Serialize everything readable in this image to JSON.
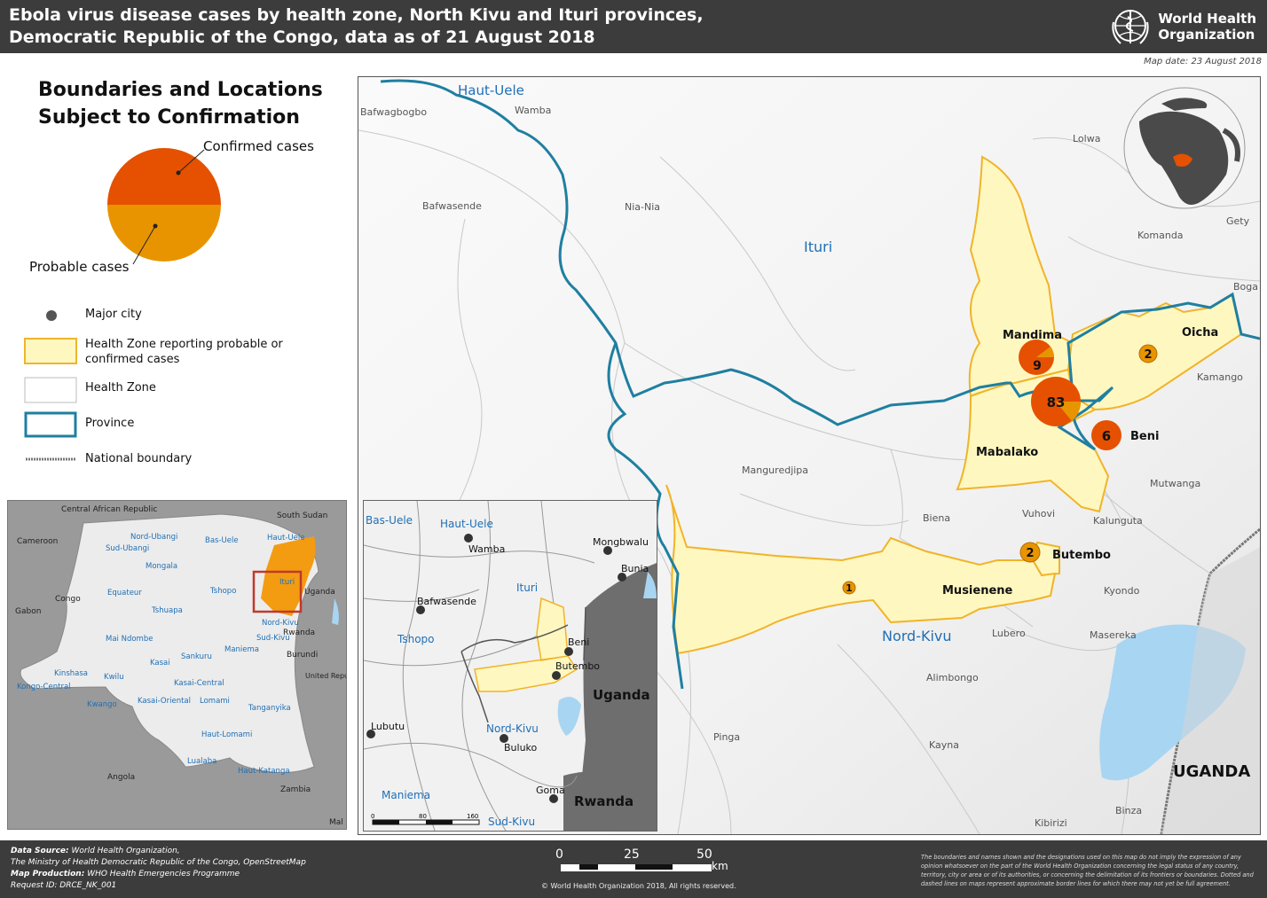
{
  "header": {
    "title_line1": "Ebola virus disease cases by health zone, North Kivu and Ituri provinces,",
    "title_line2": "Democratic Republic of the Congo, data as of 21 August 2018",
    "org_line1": "World Health",
    "org_line2": "Organization",
    "map_date": "Map date: 23 August 2018"
  },
  "legend": {
    "title_line1": "Boundaries and Locations",
    "title_line2": "Subject to Confirmation",
    "confirmed_label": "Confirmed cases",
    "probable_label": "Probable cases",
    "items": [
      {
        "label": "Major city"
      },
      {
        "label": "Health Zone reporting probable or confirmed cases"
      },
      {
        "label": "Health Zone"
      },
      {
        "label": "Province"
      },
      {
        "label": "National boundary"
      }
    ],
    "colors": {
      "confirmed": "#e55100",
      "probable": "#e89400",
      "affected_zone": "#fff7c0",
      "zone_border": "#f0b429",
      "province": "#1f7fa0"
    }
  },
  "main_map": {
    "provinces": [
      {
        "name": "Haut-Uele"
      },
      {
        "name": "Ituri"
      },
      {
        "name": "Nord-Kivu"
      }
    ],
    "places": [
      {
        "name": "Bafwagbogbo"
      },
      {
        "name": "Wamba"
      },
      {
        "name": "Lolwa"
      },
      {
        "name": "Bafwasende"
      },
      {
        "name": "Nia-Nia"
      },
      {
        "name": "Komanda"
      },
      {
        "name": "Gety"
      },
      {
        "name": "Boga"
      },
      {
        "name": "Kamango"
      },
      {
        "name": "Manguredjipa"
      },
      {
        "name": "Mutwanga"
      },
      {
        "name": "Biena"
      },
      {
        "name": "Vuhovi"
      },
      {
        "name": "Kalunguta"
      },
      {
        "name": "Kyondo"
      },
      {
        "name": "Lubero"
      },
      {
        "name": "Masereka"
      },
      {
        "name": "Alimbongo"
      },
      {
        "name": "Pinga"
      },
      {
        "name": "Kayna"
      },
      {
        "name": "Binza"
      },
      {
        "name": "Kibirizi"
      }
    ],
    "affected_zones": [
      {
        "name": "Mandima",
        "confirmed": 9,
        "probable": 1
      },
      {
        "name": "Mabalako",
        "confirmed": 83,
        "probable": 12
      },
      {
        "name": "Oicha",
        "confirmed": 0,
        "probable": 2
      },
      {
        "name": "Beni",
        "confirmed": 6,
        "probable": 0
      },
      {
        "name": "Butembo",
        "confirmed": 0,
        "probable": 2
      },
      {
        "name": "Musienene",
        "confirmed": 0,
        "probable": 1
      }
    ],
    "case_labels": {
      "mandima": "9",
      "mabalako": "83",
      "oicha": "2",
      "beni": "6",
      "butembo": "2",
      "musienene": "1"
    },
    "country_label": "UGANDA"
  },
  "drc_inset": {
    "countries": [
      "Central African Republic",
      "South Sudan",
      "Cameroon",
      "Congo",
      "Gabon",
      "Uganda",
      "Rwanda",
      "Burundi",
      "United Republic of Tanzania",
      "Angola",
      "Zambia",
      "Mal"
    ],
    "provinces": [
      "Nord-Ubangi",
      "Bas-Uele",
      "Haut-Uele",
      "Sud-Ubangi",
      "Mongala",
      "Equateur",
      "Tshopo",
      "Ituri",
      "Tshuapa",
      "Nord-Kivu",
      "Mai Ndombe",
      "Kasai",
      "Sankuru",
      "Maniema",
      "Sud-Kivu",
      "Kinshasa",
      "Kwilu",
      "Kasai-Central",
      "Kongo-Central",
      "Kwango",
      "Kasai-Oriental",
      "Lomami",
      "Tanganyika",
      "Haut-Lomami",
      "Lualaba",
      "Haut-Katanga"
    ]
  },
  "city_inset": {
    "provinces": [
      "Bas-Uele",
      "Haut-Uele",
      "Ituri",
      "Tshopo",
      "Nord-Kivu",
      "Maniema",
      "Sud-Kivu"
    ],
    "cities": [
      "Wamba",
      "Mongbwalu",
      "Bunia",
      "Bafwasende",
      "Beni",
      "Butembo",
      "Lubutu",
      "Buluko",
      "Goma"
    ],
    "countries": [
      "Uganda",
      "Rwanda"
    ],
    "scale": [
      "0",
      "80",
      "160"
    ]
  },
  "footer": {
    "source_label": "Data Source:",
    "source_text": "World Health Organization,",
    "source_text2": "The Ministry of Health Democratic Republic of the Congo, OpenStreetMap",
    "production_label": "Map Production:",
    "production_text": "WHO Health Emergencies Programme",
    "request_id": "Request ID: DRCE_NK_001",
    "scale": {
      "s0": "0",
      "s25": "25",
      "s50": "50",
      "unit": "km"
    },
    "copyright": "© World Health Organization 2018, All rights reserved.",
    "disclaimer": "The boundaries and names shown and the designations used on this map do not imply the expression of any opinion whatsoever on the part of the World Health Organization concerning the legal status of any country, territory, city or area or of its authorities, or concerning the delimitation of its frontiers or boundaries. Dotted and dashed lines on maps represent approximate border lines for which there may not yet be full agreement."
  }
}
